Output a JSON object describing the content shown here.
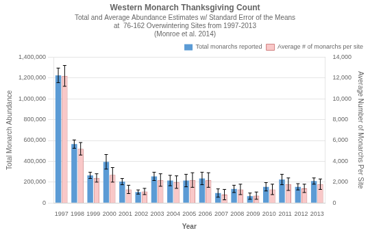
{
  "chart_data": {
    "type": "bar",
    "title": "Western Monarch Thanksgiving Count",
    "subtitle": [
      "Total and Average Abundance Estimates w/ Standard Error of the Means",
      "at  76-162 Overwintering Sites from 1997-2013",
      "(Monroe et al. 2014)"
    ],
    "xlabel": "Year",
    "ylabel": "Total Monarch Abundance",
    "y2label": "Average Number of Monarchs Per Site",
    "categories": [
      "1997",
      "1998",
      "1999",
      "2000",
      "2001",
      "2002",
      "2003",
      "2004",
      "2005",
      "2006",
      "2007",
      "2008",
      "2009",
      "2010",
      "2011",
      "2012",
      "2013"
    ],
    "series": [
      {
        "name": "Total monarchs reported",
        "color": "#5B9BD5",
        "values": [
          1225000,
          565000,
          265000,
          395000,
          205000,
          105000,
          255000,
          215000,
          215000,
          235000,
          95000,
          135000,
          65000,
          155000,
          225000,
          155000,
          210000
        ],
        "errors": [
          70000,
          40000,
          30000,
          70000,
          30000,
          20000,
          40000,
          50000,
          60000,
          60000,
          40000,
          35000,
          30000,
          40000,
          50000,
          30000,
          30000
        ]
      },
      {
        "name": "Average # of monarchs per site",
        "color": "#F9C8C8",
        "axis": "y2",
        "values": [
          12200,
          5200,
          2400,
          2700,
          1300,
          1100,
          2200,
          2000,
          2200,
          2200,
          800,
          1300,
          700,
          1300,
          1800,
          1400,
          1800
        ],
        "errors": [
          1000,
          600,
          400,
          700,
          400,
          300,
          600,
          600,
          700,
          700,
          500,
          500,
          350,
          500,
          600,
          400,
          500
        ]
      }
    ],
    "ylim": [
      0,
      1400000
    ],
    "yticks": [
      0,
      {
        "value": 200000,
        "label": "200,000"
      },
      {
        "value": 400000,
        "label": "400,000"
      },
      {
        "value": 600000,
        "label": "600,000"
      },
      {
        "value": 800000,
        "label": "800,000"
      },
      {
        "value": 1000000,
        "label": "1,000,000"
      },
      {
        "value": 1200000,
        "label": "1,200,000"
      },
      {
        "value": 1400000,
        "label": "1,400,000"
      }
    ],
    "y2lim": [
      0,
      14000
    ],
    "y2ticks": [
      0,
      {
        "value": 2000,
        "label": "2,000"
      },
      {
        "value": 4000,
        "label": "4,000"
      },
      {
        "value": 6000,
        "label": "6,000"
      },
      {
        "value": 8000,
        "label": "8,000"
      },
      {
        "value": 10000,
        "label": "10,000"
      },
      {
        "value": 12000,
        "label": "12,000"
      },
      {
        "value": 14000,
        "label": "14,000"
      }
    ],
    "grid": true,
    "legend": "upper right"
  }
}
